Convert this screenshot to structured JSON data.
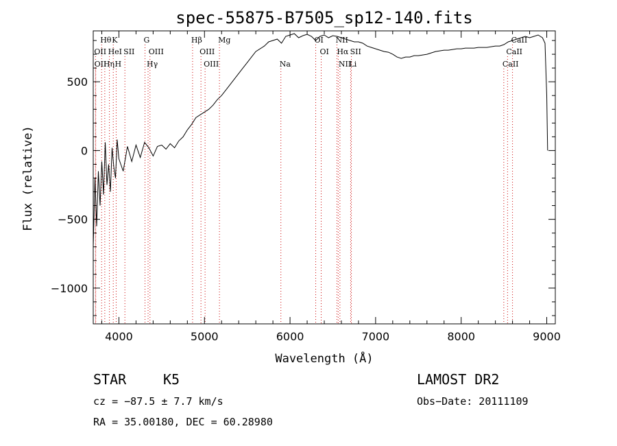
{
  "chart_data": {
    "type": "line",
    "title": "spec-55875-B7505_sp12-140.fits",
    "xlabel": "Wavelength (Å)",
    "ylabel": "Flux (relative)",
    "xlim": [
      3700,
      9100
    ],
    "ylim": [
      -1260,
      870
    ],
    "x_ticks": [
      4000,
      5000,
      6000,
      7000,
      8000,
      9000
    ],
    "y_ticks": [
      -1000,
      -500,
      0,
      500
    ],
    "grid": false,
    "series": [
      {
        "x": [
          3700,
          3720,
          3740,
          3760,
          3780,
          3800,
          3820,
          3840,
          3860,
          3880,
          3900,
          3920,
          3940,
          3960,
          3980,
          4000,
          4050,
          4100,
          4150,
          4200,
          4250,
          4300,
          4350,
          4400,
          4450,
          4500,
          4550,
          4600,
          4650,
          4700,
          4750,
          4800,
          4850,
          4900,
          4950,
          5000,
          5050,
          5100,
          5150,
          5200,
          5250,
          5300,
          5350,
          5400,
          5450,
          5500,
          5550,
          5600,
          5650,
          5700,
          5750,
          5800,
          5850,
          5900,
          5950,
          6000,
          6050,
          6100,
          6150,
          6200,
          6250,
          6300,
          6350,
          6400,
          6450,
          6500,
          6550,
          6600,
          6650,
          6700,
          6750,
          6800,
          6850,
          6900,
          6950,
          7000,
          7050,
          7100,
          7150,
          7200,
          7250,
          7300,
          7350,
          7400,
          7450,
          7500,
          7550,
          7600,
          7650,
          7700,
          7750,
          7800,
          7850,
          7900,
          7950,
          8000,
          8050,
          8100,
          8150,
          8200,
          8250,
          8300,
          8350,
          8400,
          8450,
          8500,
          8550,
          8600,
          8650,
          8700,
          8750,
          8800,
          8850,
          8900,
          8950,
          8980,
          9000,
          9010
        ],
        "y": [
          -700,
          -200,
          -550,
          -150,
          -400,
          -80,
          -320,
          60,
          -250,
          -100,
          -300,
          20,
          -120,
          -200,
          80,
          -60,
          -150,
          30,
          -80,
          40,
          -50,
          60,
          20,
          -40,
          30,
          40,
          10,
          50,
          20,
          70,
          100,
          150,
          190,
          240,
          260,
          280,
          300,
          330,
          370,
          400,
          440,
          480,
          520,
          560,
          600,
          640,
          680,
          720,
          740,
          760,
          790,
          800,
          810,
          780,
          830,
          840,
          850,
          820,
          835,
          845,
          830,
          800,
          830,
          840,
          820,
          835,
          830,
          820,
          810,
          800,
          790,
          790,
          780,
          760,
          750,
          740,
          730,
          720,
          715,
          700,
          680,
          670,
          680,
          680,
          690,
          690,
          695,
          700,
          710,
          720,
          725,
          730,
          730,
          735,
          740,
          740,
          745,
          745,
          745,
          750,
          750,
          750,
          755,
          760,
          760,
          770,
          790,
          800,
          810,
          820,
          830,
          820,
          830,
          840,
          820,
          780,
          400,
          0
        ]
      }
    ],
    "lines": [
      {
        "label": "Hθ",
        "x": 3798,
        "row": 1
      },
      {
        "label": "K",
        "x": 3934,
        "row": 1
      },
      {
        "label": "G",
        "x": 4305,
        "row": 1
      },
      {
        "label": "Hβ",
        "x": 4861,
        "row": 1
      },
      {
        "label": "Mg",
        "x": 5175,
        "row": 1
      },
      {
        "label": "OI",
        "x": 6300,
        "row": 1
      },
      {
        "label": "NII",
        "x": 6548,
        "row": 1
      },
      {
        "label": "CaII",
        "x": 8600,
        "row": 1
      },
      {
        "label": "OII",
        "x": 3727,
        "row": 2
      },
      {
        "label": "HeI",
        "x": 3889,
        "row": 2
      },
      {
        "label": "SII",
        "x": 4070,
        "row": 2
      },
      {
        "label": "OIII",
        "x": 4363,
        "row": 2
      },
      {
        "label": "OIII",
        "x": 4959,
        "row": 2
      },
      {
        "label": "OI",
        "x": 6364,
        "row": 2
      },
      {
        "label": "Hα",
        "x": 6563,
        "row": 2
      },
      {
        "label": "SII",
        "x": 6717,
        "row": 2
      },
      {
        "label": "CaII",
        "x": 8542,
        "row": 2
      },
      {
        "label": "OII",
        "x": 3729,
        "row": 3
      },
      {
        "label": "Hη",
        "x": 3835,
        "row": 3
      },
      {
        "label": "H",
        "x": 3968,
        "row": 3
      },
      {
        "label": "Hγ",
        "x": 4341,
        "row": 3
      },
      {
        "label": "OIII",
        "x": 5007,
        "row": 3
      },
      {
        "label": "Na",
        "x": 5893,
        "row": 3
      },
      {
        "label": "NII",
        "x": 6583,
        "row": 3
      },
      {
        "label": "Li",
        "x": 6708,
        "row": 3
      },
      {
        "label": "CaII",
        "x": 8498,
        "row": 3
      }
    ],
    "line_color": "#cc0000"
  },
  "footer": {
    "class_label": "STAR",
    "subclass": "K5",
    "survey": "LAMOST DR2",
    "cz": "cz = −87.5 ± 7.7 km/s",
    "obs_date": "Obs−Date: 20111109",
    "radec": "RA =  35.00180, DEC =  60.28980"
  }
}
